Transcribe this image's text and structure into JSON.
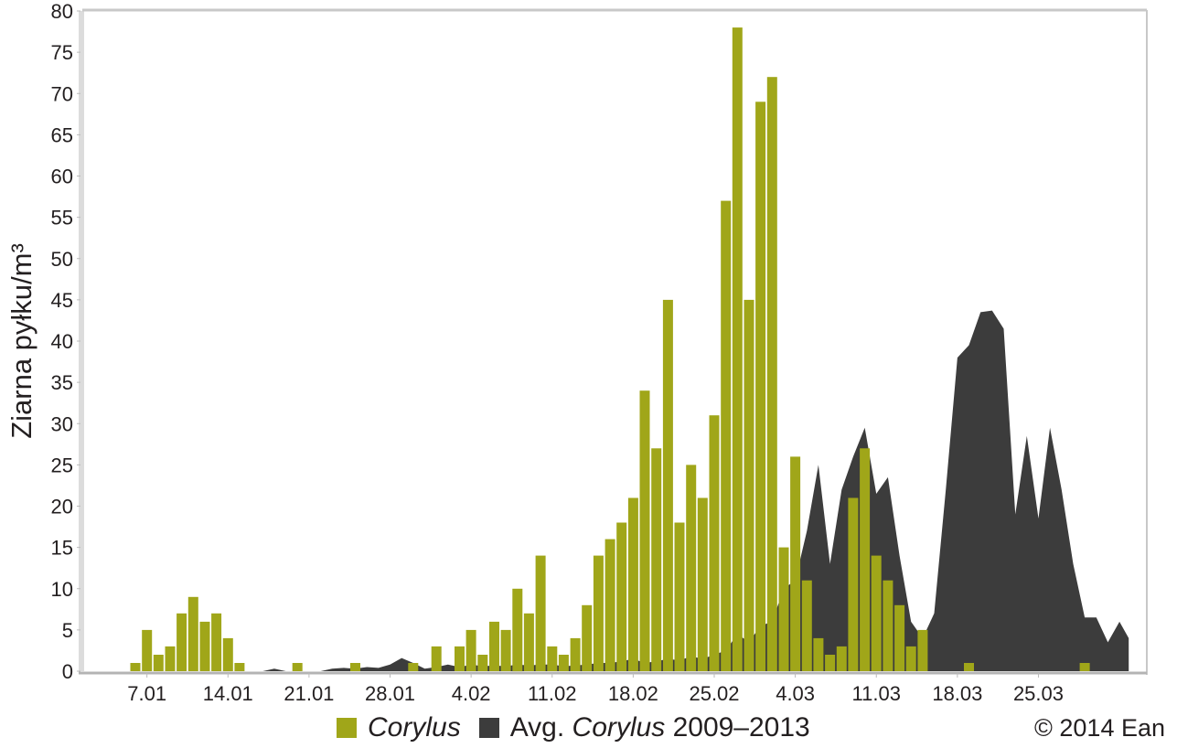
{
  "colors": {
    "corylus": "#a0a619",
    "average": "#3c3c3c",
    "axis": "#c8c8c8",
    "text": "#231f20"
  },
  "legend": {
    "items": [
      {
        "label": "Corylus",
        "italic": true,
        "color": "#a0a619"
      },
      {
        "prefix": "Avg. ",
        "label": "Corylus",
        "suffix": " 2009–2013",
        "color": "#3c3c3c"
      }
    ]
  },
  "copyright": "© 2014 Ean",
  "chart_data": {
    "type": "bar",
    "title": "",
    "xlabel": "",
    "ylabel": "Ziarna pyłku/m³",
    "ylim": [
      0,
      80
    ],
    "yticks": [
      0,
      5,
      10,
      15,
      20,
      25,
      30,
      35,
      40,
      45,
      50,
      55,
      60,
      65,
      70,
      75,
      80
    ],
    "xtick_labels": [
      "7.01",
      "14.01",
      "21.01",
      "28.01",
      "4.02",
      "11.02",
      "18.02",
      "25.02",
      "4.03",
      "11.03",
      "18.03",
      "25.03"
    ],
    "x_start_date": "6.01",
    "x_days": 86,
    "grid": false,
    "legend_position": "bottom",
    "series": [
      {
        "name": "Corylus",
        "type": "bar",
        "points": [
          [
            "6.01",
            1
          ],
          [
            "7.01",
            5
          ],
          [
            "8.01",
            2
          ],
          [
            "9.01",
            3
          ],
          [
            "10.01",
            7
          ],
          [
            "11.01",
            9
          ],
          [
            "12.01",
            6
          ],
          [
            "13.01",
            7
          ],
          [
            "14.01",
            4
          ],
          [
            "15.01",
            1
          ],
          [
            "20.01",
            1
          ],
          [
            "25.01",
            1
          ],
          [
            "30.01",
            1
          ],
          [
            "1.02",
            3
          ],
          [
            "3.02",
            3
          ],
          [
            "4.02",
            5
          ],
          [
            "5.02",
            2
          ],
          [
            "6.02",
            6
          ],
          [
            "7.02",
            5
          ],
          [
            "8.02",
            10
          ],
          [
            "9.02",
            7
          ],
          [
            "10.02",
            14
          ],
          [
            "11.02",
            3
          ],
          [
            "12.02",
            2
          ],
          [
            "13.02",
            4
          ],
          [
            "14.02",
            8
          ],
          [
            "15.02",
            14
          ],
          [
            "16.02",
            16
          ],
          [
            "17.02",
            18
          ],
          [
            "18.02",
            21
          ],
          [
            "19.02",
            34
          ],
          [
            "20.02",
            27
          ],
          [
            "21.02",
            45
          ],
          [
            "22.02",
            18
          ],
          [
            "23.02",
            25
          ],
          [
            "24.02",
            21
          ],
          [
            "25.02",
            31
          ],
          [
            "26.02",
            57
          ],
          [
            "27.02",
            78
          ],
          [
            "28.02",
            45
          ],
          [
            "1.03",
            69
          ],
          [
            "2.03",
            72
          ],
          [
            "3.03",
            15
          ],
          [
            "4.03",
            26
          ],
          [
            "5.03",
            11
          ],
          [
            "6.03",
            4
          ],
          [
            "7.03",
            2
          ],
          [
            "8.03",
            3
          ],
          [
            "9.03",
            21
          ],
          [
            "10.03",
            27
          ],
          [
            "11.03",
            14
          ],
          [
            "12.03",
            11
          ],
          [
            "13.03",
            8
          ],
          [
            "14.03",
            3
          ],
          [
            "15.03",
            5
          ],
          [
            "19.03",
            1
          ],
          [
            "29.03",
            1
          ]
        ]
      },
      {
        "name": "Avg. Corylus 2009–2013",
        "type": "area",
        "points": [
          [
            "17.01",
            0
          ],
          [
            "18.01",
            0.3
          ],
          [
            "19.01",
            0
          ],
          [
            "22.01",
            0
          ],
          [
            "23.01",
            0.3
          ],
          [
            "24.01",
            0.4
          ],
          [
            "25.01",
            0.3
          ],
          [
            "26.01",
            0.5
          ],
          [
            "27.01",
            0.4
          ],
          [
            "28.01",
            0.8
          ],
          [
            "29.01",
            1.6
          ],
          [
            "30.01",
            1.0
          ],
          [
            "31.01",
            0.3
          ],
          [
            "1.02",
            0.5
          ],
          [
            "2.02",
            0.8
          ],
          [
            "3.02",
            0.5
          ],
          [
            "4.02",
            0.8
          ],
          [
            "5.02",
            0.6
          ],
          [
            "6.02",
            0.7
          ],
          [
            "7.02",
            0.6
          ],
          [
            "8.02",
            0.8
          ],
          [
            "9.02",
            0.7
          ],
          [
            "10.02",
            0.8
          ],
          [
            "11.02",
            0.8
          ],
          [
            "12.02",
            0.6
          ],
          [
            "13.02",
            0.7
          ],
          [
            "14.02",
            0.8
          ],
          [
            "15.02",
            1.0
          ],
          [
            "16.02",
            1.0
          ],
          [
            "17.02",
            1.2
          ],
          [
            "18.02",
            1.5
          ],
          [
            "19.02",
            1.0
          ],
          [
            "20.02",
            1.2
          ],
          [
            "21.02",
            1.5
          ],
          [
            "22.02",
            1.3
          ],
          [
            "23.02",
            1.8
          ],
          [
            "24.02",
            1.5
          ],
          [
            "25.02",
            2.0
          ],
          [
            "26.02",
            2.5
          ],
          [
            "27.02",
            4.5
          ],
          [
            "28.02",
            3.5
          ],
          [
            "1.03",
            5.5
          ],
          [
            "2.03",
            6.0
          ],
          [
            "3.03",
            10.0
          ],
          [
            "4.03",
            11.0
          ],
          [
            "5.03",
            17.0
          ],
          [
            "6.03",
            25.0
          ],
          [
            "7.03",
            13.0
          ],
          [
            "8.03",
            22.0
          ],
          [
            "9.03",
            26.0
          ],
          [
            "10.03",
            29.5
          ],
          [
            "11.03",
            21.5
          ],
          [
            "12.03",
            23.5
          ],
          [
            "13.03",
            14.0
          ],
          [
            "14.03",
            6.0
          ],
          [
            "15.03",
            4.0
          ],
          [
            "16.03",
            7.0
          ],
          [
            "17.03",
            22.0
          ],
          [
            "18.03",
            38.0
          ],
          [
            "19.03",
            39.5
          ],
          [
            "20.03",
            43.5
          ],
          [
            "21.03",
            43.7
          ],
          [
            "22.03",
            41.5
          ],
          [
            "23.03",
            19.0
          ],
          [
            "24.03",
            28.5
          ],
          [
            "25.03",
            18.5
          ],
          [
            "26.03",
            29.5
          ],
          [
            "27.03",
            22.0
          ],
          [
            "28.03",
            13.0
          ],
          [
            "29.03",
            6.5
          ],
          [
            "30.03",
            6.5
          ],
          [
            "31.03",
            3.5
          ],
          [
            "1.04",
            6.0
          ],
          [
            "1.04+",
            4.0
          ]
        ]
      }
    ]
  }
}
